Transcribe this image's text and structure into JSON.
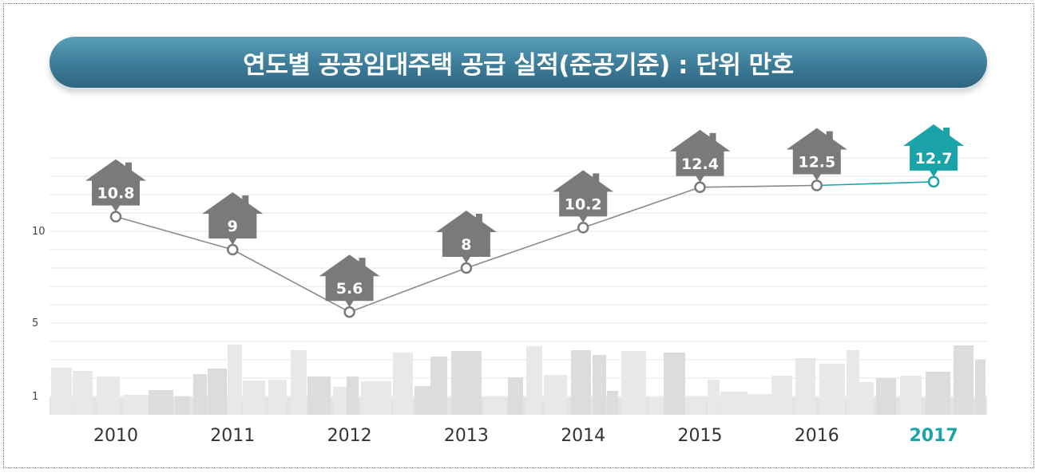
{
  "chart_data": {
    "type": "line",
    "title": "연도별 공공임대주택 공급 실적(준공기준) : 단위 만호",
    "categories": [
      "2010",
      "2011",
      "2012",
      "2013",
      "2014",
      "2015",
      "2016",
      "2017"
    ],
    "series": [
      {
        "values": [
          10.8,
          9,
          5.6,
          8,
          10.2,
          12.4,
          12.5,
          12.7
        ],
        "labels": [
          "10.8",
          "9",
          "5.6",
          "8",
          "10.2",
          "12.4",
          "12.5",
          "12.7"
        ]
      }
    ],
    "yticks": [
      "1",
      "5",
      "10"
    ],
    "ylim": [
      0,
      14
    ],
    "highlight_category": "2017",
    "grid": true,
    "colors": {
      "default": "#7a7a7a",
      "highlight": "#1aa3a8",
      "line": "#8a8a8a"
    }
  }
}
